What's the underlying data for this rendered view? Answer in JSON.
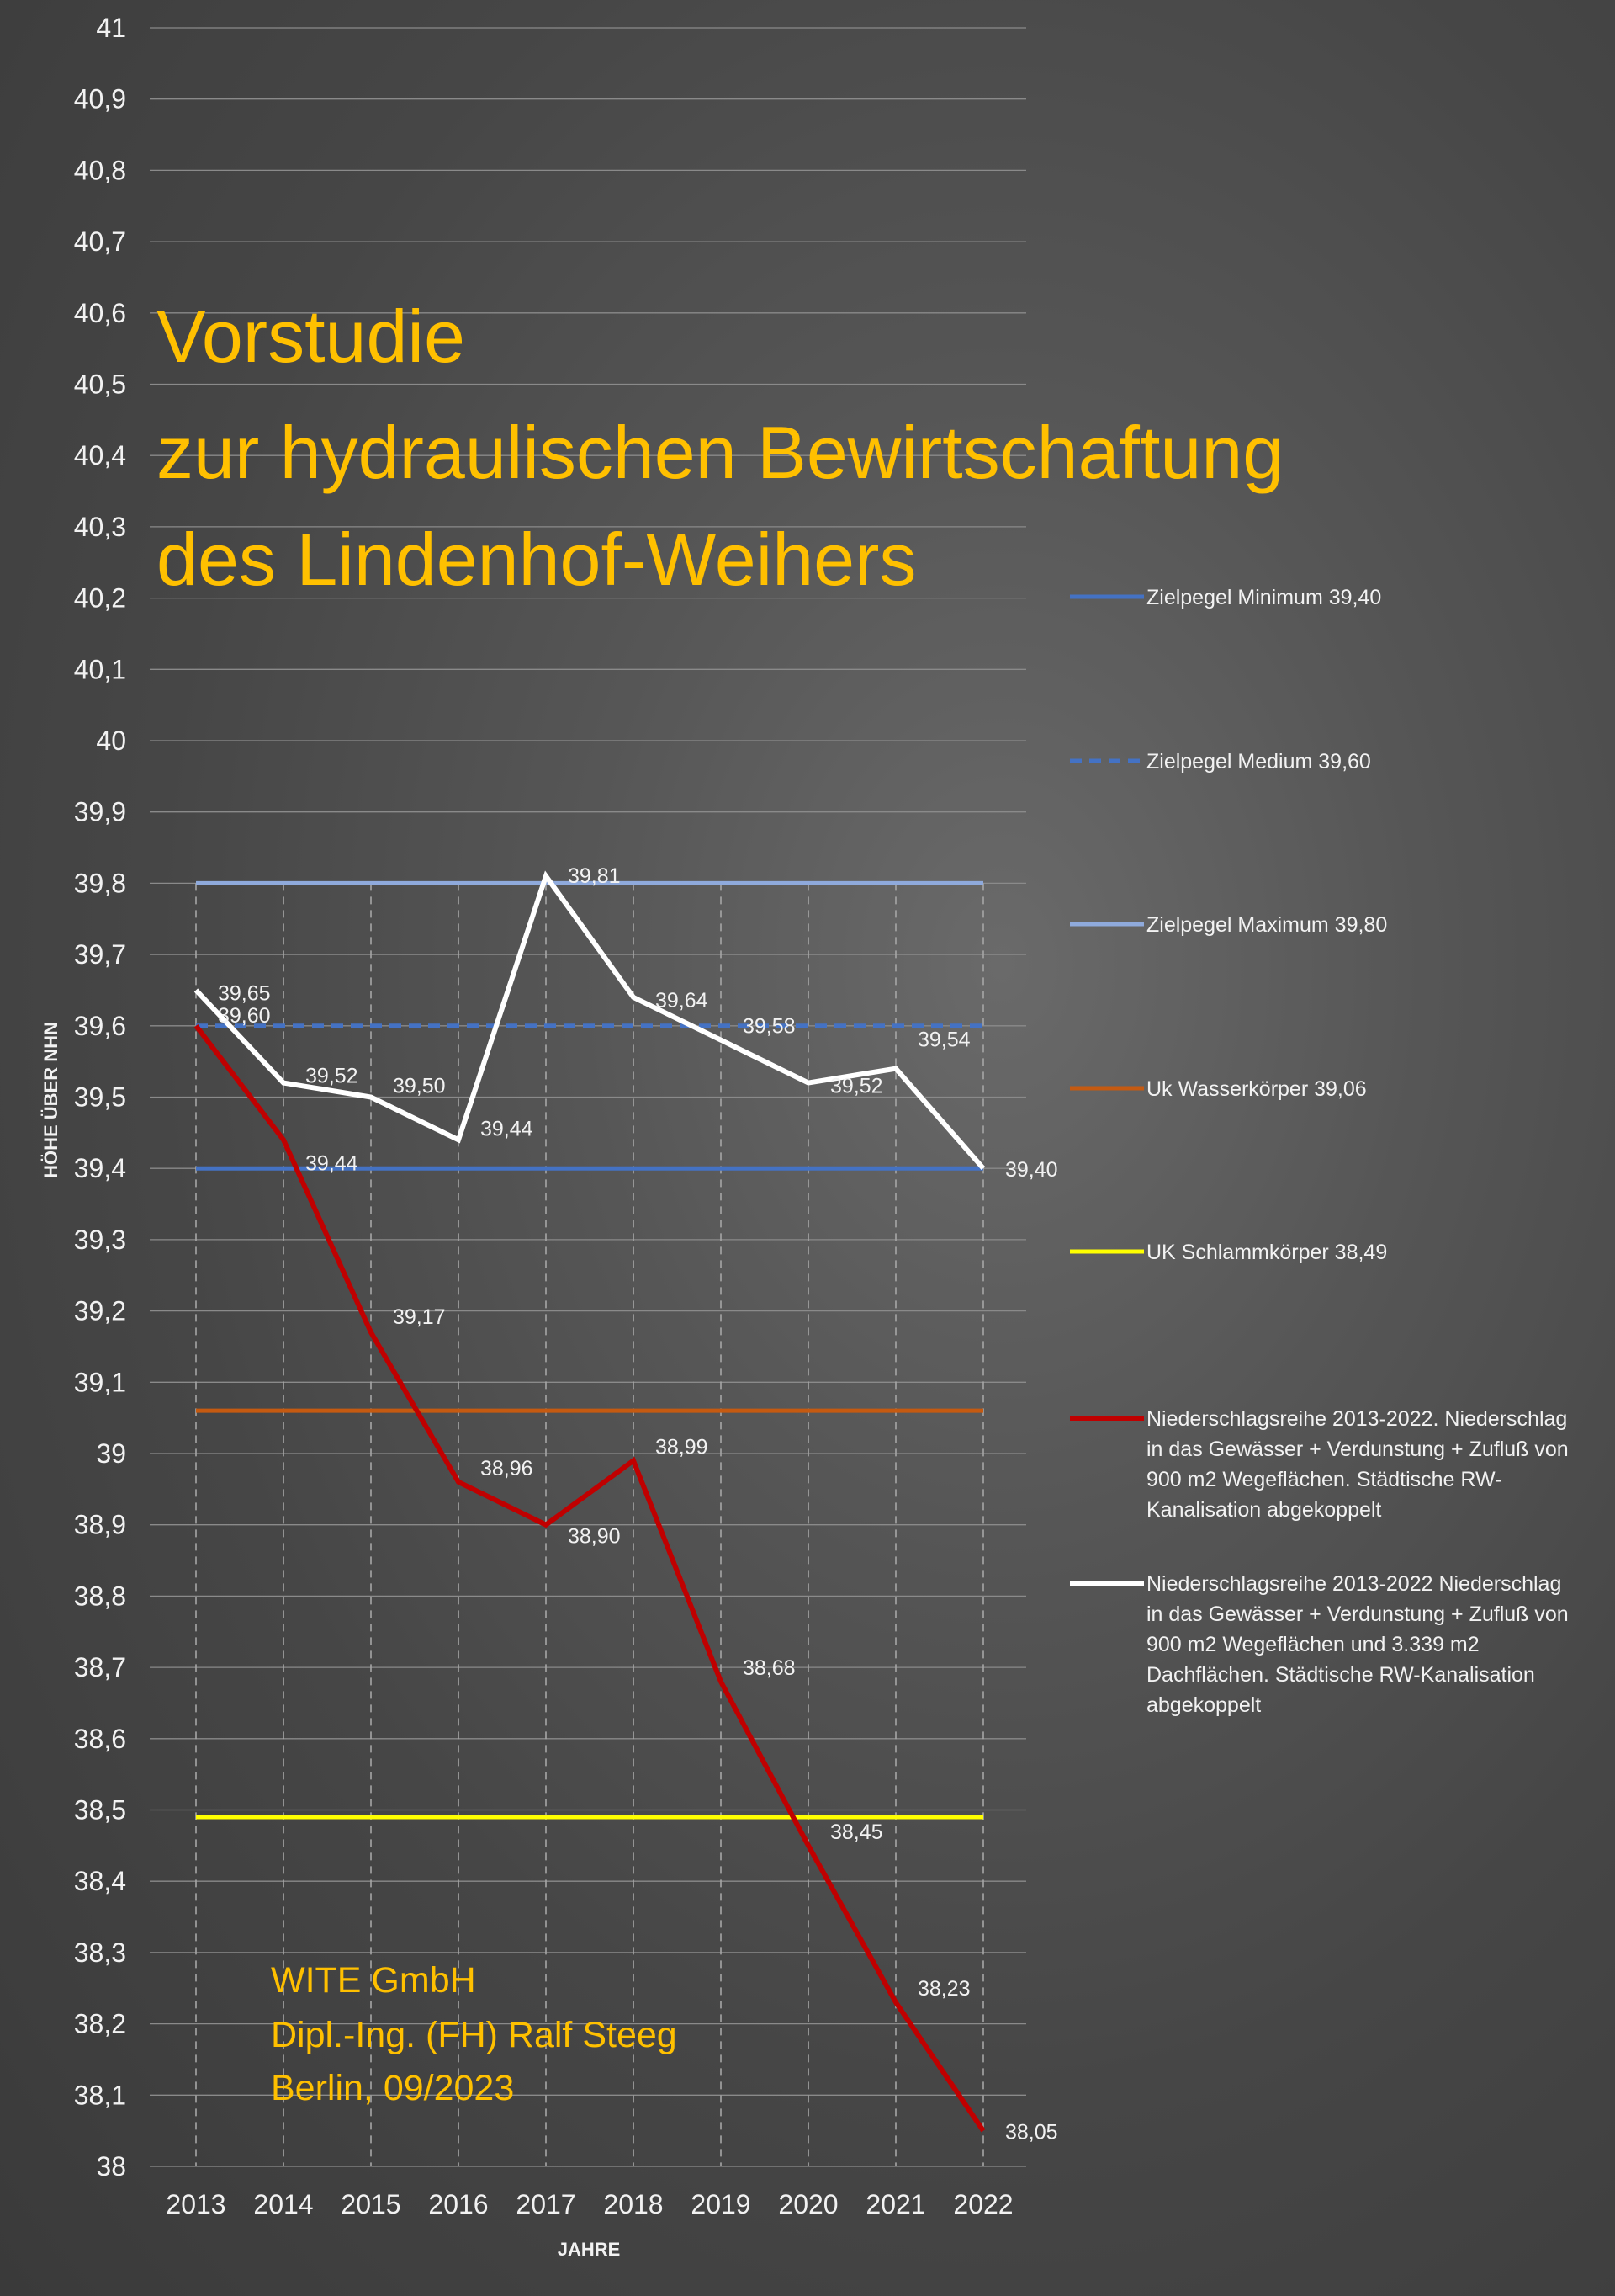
{
  "title_lines": [
    "Vorstudie",
    "zur hydraulischen Bewirtschaftung",
    "des Lindenhof-Weihers"
  ],
  "credit_lines": [
    "WITE GmbH",
    "Dipl.-Ing. (FH) Ralf Steeg",
    "Berlin, 09/2023"
  ],
  "colors": {
    "title": "#ffc000",
    "grid": "#8a8a8a",
    "text": "#f2f2f2"
  },
  "chart_data": {
    "type": "line",
    "xlabel": "JAHRE",
    "ylabel": "HÖHE ÜBER NHN",
    "ylim": [
      38,
      41
    ],
    "y_ticks": [
      38,
      38.1,
      38.2,
      38.3,
      38.4,
      38.5,
      38.6,
      38.7,
      38.8,
      38.9,
      39,
      39.1,
      39.2,
      39.3,
      39.4,
      39.5,
      39.6,
      39.7,
      39.8,
      39.9,
      40,
      40.1,
      40.2,
      40.3,
      40.4,
      40.5,
      40.6,
      40.7,
      40.8,
      40.9,
      41
    ],
    "y_tick_labels": [
      "38",
      "38,1",
      "38,2",
      "38,3",
      "38,4",
      "38,5",
      "38,6",
      "38,7",
      "38,8",
      "38,9",
      "39",
      "39,1",
      "39,2",
      "39,3",
      "39,4",
      "39,5",
      "39,6",
      "39,7",
      "39,8",
      "39,9",
      "40",
      "40,1",
      "40,2",
      "40,3",
      "40,4",
      "40,5",
      "40,6",
      "40,7",
      "40,8",
      "40,9",
      "41"
    ],
    "categories": [
      "2013",
      "2014",
      "2015",
      "2016",
      "2017",
      "2018",
      "2019",
      "2020",
      "2021",
      "2022"
    ],
    "grid": true,
    "legend_position": "right",
    "series": [
      {
        "name": "Zielpegel Minimum 39,40",
        "color": "#4472c4",
        "style": "solid",
        "values": [
          39.4,
          39.4,
          39.4,
          39.4,
          39.4,
          39.4,
          39.4,
          39.4,
          39.4,
          39.4
        ]
      },
      {
        "name": "Zielpegel Medium 39,60",
        "color": "#4472c4",
        "style": "dashed",
        "values": [
          39.6,
          39.6,
          39.6,
          39.6,
          39.6,
          39.6,
          39.6,
          39.6,
          39.6,
          39.6
        ]
      },
      {
        "name": "Zielpegel Maximum 39,80",
        "color": "#8faadc",
        "style": "solid",
        "values": [
          39.8,
          39.8,
          39.8,
          39.8,
          39.8,
          39.8,
          39.8,
          39.8,
          39.8,
          39.8
        ]
      },
      {
        "name": "Uk Wasserkörper 39,06",
        "color": "#c55a11",
        "style": "solid",
        "values": [
          39.06,
          39.06,
          39.06,
          39.06,
          39.06,
          39.06,
          39.06,
          39.06,
          39.06,
          39.06
        ]
      },
      {
        "name": "UK Schlammkörper 38,49",
        "color": "#ffff00",
        "style": "solid",
        "values": [
          38.49,
          38.49,
          38.49,
          38.49,
          38.49,
          38.49,
          38.49,
          38.49,
          38.49,
          38.49
        ]
      },
      {
        "name": "Niederschlagsreihe 2013-2022. Niederschlag in das Gewässer + Verdunstung + Zufluß von 900 m2 Wegeflächen. Städtische RW-Kanalisation abgekoppelt",
        "legend_lines": [
          "Niederschlagsreihe 2013-2022. Niederschlag",
          "in das Gewässer + Verdunstung + Zufluß von",
          "900 m2 Wegeflächen. Städtische RW-",
          "Kanalisation abgekoppelt"
        ],
        "color": "#c00000",
        "style": "solid",
        "values": [
          39.6,
          39.44,
          39.17,
          38.96,
          38.9,
          38.99,
          38.68,
          38.45,
          38.23,
          38.05
        ],
        "data_labels": [
          "39,60",
          "39,44",
          "39,17",
          "38,96",
          "38,90",
          "38,99",
          "38,68",
          "38,45",
          "38,23",
          "38,05"
        ]
      },
      {
        "name": "Niederschlagsreihe 2013-2022 Niederschlag in das Gewässer + Verdunstung + Zufluß von 900 m2 Wegeflächen und 3.339 m2 Dachflächen. Städtische RW-Kanalisation abgekoppelt",
        "legend_lines": [
          "Niederschlagsreihe 2013-2022  Niederschlag",
          "in das Gewässer + Verdunstung + Zufluß von",
          "900 m2 Wegeflächen und 3.339 m2",
          "Dachflächen. Städtische RW-Kanalisation",
          "abgekoppelt"
        ],
        "color": "#ffffff",
        "style": "solid",
        "values": [
          39.65,
          39.52,
          39.5,
          39.44,
          39.81,
          39.64,
          39.58,
          39.52,
          39.54,
          39.4
        ],
        "data_labels": [
          "39,65",
          "39,52",
          "39,50",
          "39,44",
          "39,81",
          "39,64",
          "39,58",
          "39,52",
          "39,54",
          "39,40"
        ]
      }
    ]
  }
}
